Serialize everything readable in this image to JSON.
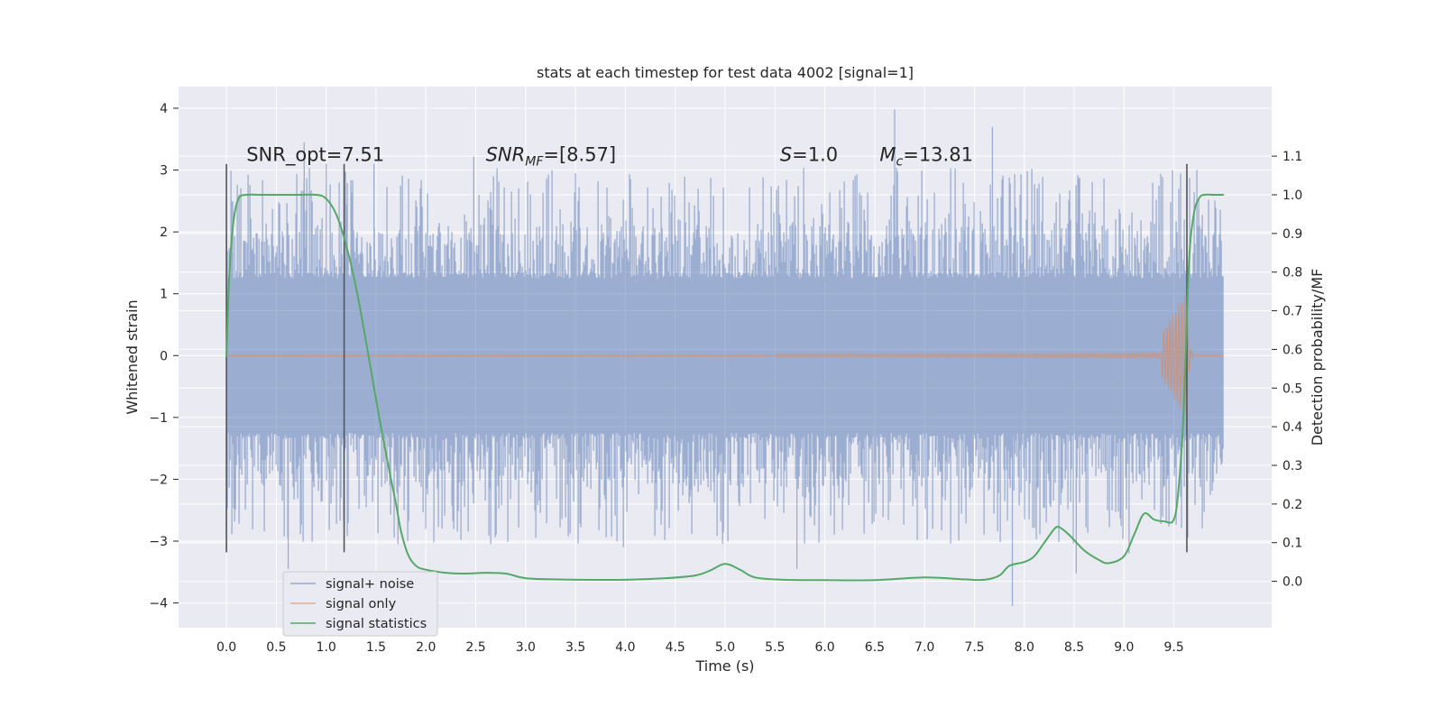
{
  "chart_data": {
    "type": "line",
    "title": "stats at each timestep for test data 4002 [signal=1]",
    "xlabel": "Time (s)",
    "ylabel": "Whitened strain",
    "ylabel_right": "Detection probability/MF",
    "xlim": [
      -0.48,
      10.48
    ],
    "ylim": [
      -4.4,
      4.35
    ],
    "ylim_right": [
      -0.12,
      1.28
    ],
    "x_ticks": [
      "0.0",
      "0.5",
      "1.0",
      "1.5",
      "2.0",
      "2.5",
      "3.0",
      "3.5",
      "4.0",
      "4.5",
      "5.0",
      "5.5",
      "6.0",
      "6.5",
      "7.0",
      "7.5",
      "8.0",
      "8.5",
      "9.0",
      "9.5"
    ],
    "y_ticks": [
      "−4",
      "−3",
      "−2",
      "−1",
      "0",
      "1",
      "2",
      "3",
      "4"
    ],
    "y_ticks_right": [
      "0.0",
      "0.1",
      "0.2",
      "0.3",
      "0.4",
      "0.5",
      "0.6",
      "0.7",
      "0.8",
      "0.9",
      "1.0",
      "1.1"
    ],
    "grid": true,
    "legend_position": "lower-left",
    "colors": {
      "noise": "#4c72b0",
      "signal": "#dd8452",
      "stats": "#55a868",
      "markers": "#555555",
      "background": "#eaeaf2",
      "grid": "#ffffff"
    },
    "series": [
      {
        "name": "signal+ noise",
        "axis": "left",
        "description_free": true,
        "envelope_core": 1.25,
        "peaks": [
          {
            "x": 0.0,
            "y": -3.18
          },
          {
            "x": 0.05,
            "y": 2.5
          },
          {
            "x": 0.62,
            "y": -3.45
          },
          {
            "x": 0.78,
            "y": 3.45
          },
          {
            "x": 1.0,
            "y": 3.1
          },
          {
            "x": 1.48,
            "y": 3.1
          },
          {
            "x": 1.72,
            "y": -3.05
          },
          {
            "x": 2.48,
            "y": 3.22
          },
          {
            "x": 3.5,
            "y": 2.95
          },
          {
            "x": 3.98,
            "y": -3.1
          },
          {
            "x": 5.72,
            "y": -3.45
          },
          {
            "x": 6.7,
            "y": 3.98
          },
          {
            "x": 7.68,
            "y": 3.7
          },
          {
            "x": 7.88,
            "y": -4.05
          },
          {
            "x": 8.52,
            "y": -3.52
          },
          {
            "x": 9.05,
            "y": -3.2
          },
          {
            "x": 9.35,
            "y": 2.75
          }
        ]
      },
      {
        "name": "signal only",
        "axis": "left",
        "chirp_start": 5.5,
        "merger_time": 9.63,
        "peak_amplitude": 1.05,
        "end_time": 10.0
      },
      {
        "name": "signal statistics",
        "axis": "right",
        "x": [
          0.0,
          0.03,
          0.07,
          0.12,
          0.2,
          0.35,
          0.5,
          0.7,
          0.9,
          1.0,
          1.1,
          1.2,
          1.3,
          1.4,
          1.5,
          1.6,
          1.7,
          1.75,
          1.82,
          1.9,
          2.0,
          2.2,
          2.4,
          2.6,
          2.8,
          3.0,
          3.3,
          3.6,
          4.0,
          4.4,
          4.7,
          4.85,
          5.0,
          5.15,
          5.3,
          5.6,
          6.0,
          6.5,
          7.0,
          7.4,
          7.6,
          7.75,
          7.85,
          8.0,
          8.1,
          8.2,
          8.3,
          8.35,
          8.45,
          8.6,
          8.75,
          8.85,
          9.0,
          9.1,
          9.2,
          9.3,
          9.4,
          9.5,
          9.55,
          9.6,
          9.65,
          9.7,
          9.75,
          9.8,
          9.9,
          10.0
        ],
        "y": [
          0.58,
          0.8,
          0.93,
          0.99,
          1.0,
          1.0,
          1.0,
          1.0,
          1.0,
          0.99,
          0.95,
          0.87,
          0.76,
          0.62,
          0.47,
          0.33,
          0.2,
          0.13,
          0.07,
          0.04,
          0.03,
          0.022,
          0.02,
          0.022,
          0.02,
          0.008,
          0.005,
          0.004,
          0.004,
          0.008,
          0.015,
          0.028,
          0.045,
          0.03,
          0.01,
          0.004,
          0.003,
          0.003,
          0.01,
          0.005,
          0.004,
          0.015,
          0.04,
          0.05,
          0.065,
          0.1,
          0.135,
          0.14,
          0.12,
          0.08,
          0.055,
          0.047,
          0.065,
          0.12,
          0.175,
          0.16,
          0.155,
          0.16,
          0.25,
          0.45,
          0.82,
          0.95,
          0.99,
          1.0,
          1.0,
          1.0
        ]
      }
    ],
    "vertical_markers": [
      {
        "x": 0.0,
        "y_range": [
          -3.18,
          3.1
        ]
      },
      {
        "x": 1.18,
        "y_range": [
          -3.18,
          3.1
        ]
      },
      {
        "x": 9.63,
        "y_range": [
          -3.18,
          3.1
        ]
      }
    ],
    "annotations": [
      {
        "text": "SNR_opt=7.51",
        "x": 0.2,
        "y": 3.15
      },
      {
        "pre": "SNR",
        "sub": "MF",
        "post": "=[8.57]",
        "x": 2.6,
        "y": 3.15
      },
      {
        "pre": "S",
        "sub": "",
        "post": "=1.0",
        "x": 5.55,
        "y": 3.15
      },
      {
        "pre": "M",
        "sub": "c",
        "post": "=13.81",
        "x": 6.55,
        "y": 3.15
      }
    ]
  }
}
